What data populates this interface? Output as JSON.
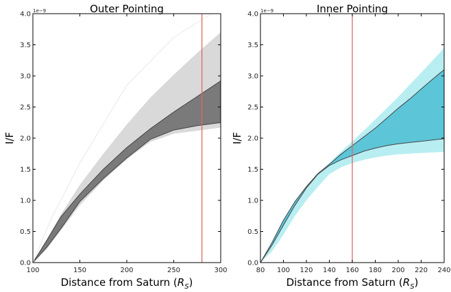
{
  "chart_data": [
    {
      "type": "area",
      "title": "Outer Pointing",
      "xlabel": "Distance from Saturn ($R_S$)",
      "ylabel": "I/F",
      "y_offset_label": "1e−9",
      "xlim": [
        100,
        300
      ],
      "ylim": [
        0,
        4.0
      ],
      "xticks": [
        "100",
        "150",
        "200",
        "250",
        "300"
      ],
      "yticks": [
        "0.0",
        "0.5",
        "1.0",
        "1.5",
        "2.0",
        "2.5",
        "3.0",
        "3.5",
        "4.0"
      ],
      "grid": false,
      "vline": {
        "x": 280,
        "color": "#e06666"
      },
      "colors": {
        "outer_band": "#d9d9d9",
        "inner_band": "#7a7a7a",
        "faint_line": "#e8e8e8"
      },
      "series": [
        {
          "role": "outer_band",
          "x": [
            100,
            115,
            130,
            150,
            175,
            200,
            225,
            250,
            275,
            300
          ],
          "upper": [
            0,
            0.38,
            0.78,
            1.25,
            1.75,
            2.22,
            2.65,
            3.02,
            3.37,
            3.7
          ],
          "lower": [
            0,
            0.22,
            0.52,
            0.92,
            1.32,
            1.66,
            1.94,
            2.07,
            2.12,
            2.17
          ]
        },
        {
          "role": "inner_band",
          "x": [
            100,
            115,
            130,
            150,
            175,
            200,
            225,
            250,
            275,
            300
          ],
          "upper": [
            0,
            0.36,
            0.74,
            1.1,
            1.5,
            1.85,
            2.15,
            2.42,
            2.67,
            2.92
          ],
          "lower": [
            0,
            0.25,
            0.55,
            0.98,
            1.35,
            1.68,
            1.98,
            2.13,
            2.2,
            2.25
          ]
        },
        {
          "role": "faint_line",
          "x": [
            100,
            120,
            150,
            200,
            250,
            290
          ],
          "values": [
            0,
            0.72,
            1.6,
            2.85,
            3.62,
            4.0
          ]
        }
      ]
    },
    {
      "type": "area",
      "title": "Inner Pointing",
      "xlabel": "Distance from Saturn ($R_S$)",
      "ylabel": "I/F",
      "y_offset_label": "1e−9",
      "xlim": [
        80,
        240
      ],
      "ylim": [
        0,
        4.0
      ],
      "xticks": [
        "80",
        "100",
        "120",
        "140",
        "160",
        "180",
        "200",
        "220",
        "240"
      ],
      "yticks": [
        "0.0",
        "0.5",
        "1.0",
        "1.5",
        "2.0",
        "2.5",
        "3.0",
        "3.5",
        "4.0"
      ],
      "grid": false,
      "vline": {
        "x": 160,
        "color": "#e06666"
      },
      "colors": {
        "outer_band": "#b8eef2",
        "inner_band": "#5cc5d8"
      },
      "series": [
        {
          "role": "outer_band",
          "x": [
            80,
            90,
            100,
            110,
            120,
            130,
            140,
            150,
            160,
            170,
            180,
            190,
            200,
            210,
            220,
            230,
            240
          ],
          "upper": [
            0,
            0.3,
            0.65,
            0.95,
            1.2,
            1.42,
            1.6,
            1.78,
            1.95,
            2.12,
            2.3,
            2.48,
            2.66,
            2.86,
            3.05,
            3.25,
            3.45
          ],
          "lower": [
            0,
            0.18,
            0.45,
            0.75,
            1.0,
            1.22,
            1.42,
            1.53,
            1.6,
            1.65,
            1.69,
            1.72,
            1.74,
            1.75,
            1.76,
            1.77,
            1.78
          ]
        },
        {
          "role": "inner_band",
          "x": [
            80,
            90,
            100,
            110,
            120,
            130,
            140,
            150,
            160,
            170,
            180,
            190,
            200,
            210,
            220,
            230,
            240
          ],
          "upper": [
            0,
            0.32,
            0.68,
            0.98,
            1.22,
            1.43,
            1.58,
            1.74,
            1.88,
            2.02,
            2.16,
            2.32,
            2.48,
            2.63,
            2.79,
            2.95,
            3.1
          ],
          "lower": [
            0,
            0.28,
            0.6,
            0.92,
            1.2,
            1.42,
            1.56,
            1.65,
            1.72,
            1.79,
            1.84,
            1.88,
            1.91,
            1.93,
            1.95,
            1.97,
            1.99
          ]
        }
      ]
    }
  ]
}
